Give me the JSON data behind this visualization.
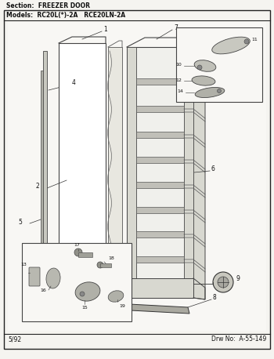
{
  "title_section": "Section:  FREEZER DOOR",
  "title_models": "Models:  RC20L(*)-2A   RCE20LN-2A",
  "footer_left": "5/92",
  "footer_right": "Drw No:  A-55-149",
  "bg_color": "#f5f4f0",
  "white": "#ffffff",
  "border_color": "#222222",
  "text_color": "#111111",
  "line_color": "#333333",
  "fig_width": 3.5,
  "fig_height": 4.58,
  "dpi": 100
}
